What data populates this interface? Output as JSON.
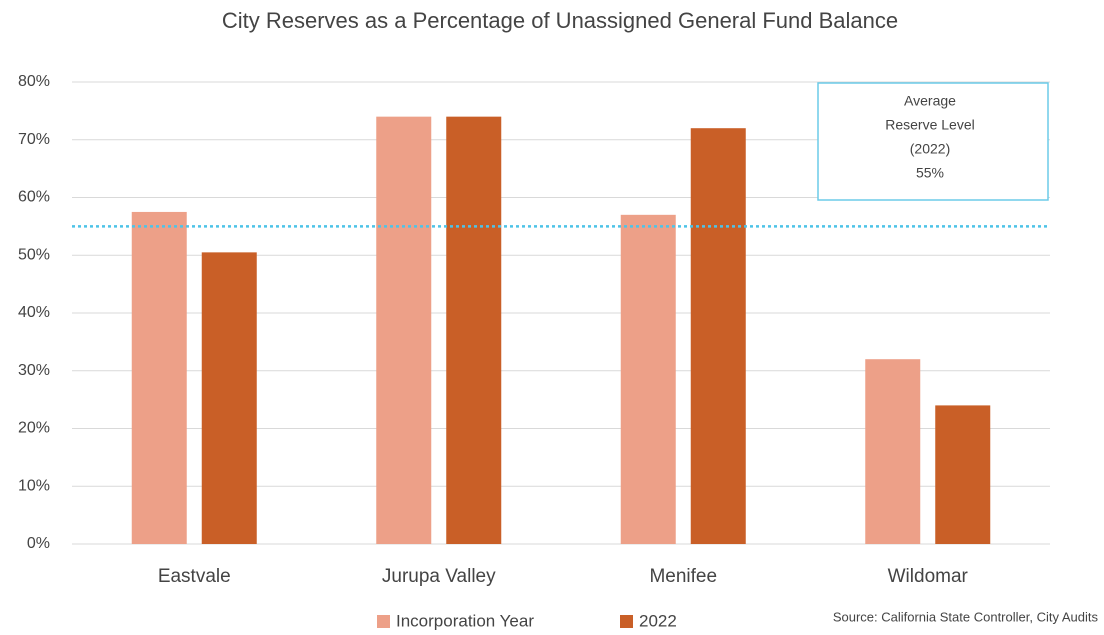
{
  "chart_data": {
    "type": "bar",
    "title": "City Reserves as a Percentage of Unassigned General Fund Balance",
    "categories": [
      "Eastvale",
      "Jurupa Valley",
      "Menifee",
      "Wildomar"
    ],
    "series": [
      {
        "name": "Incorporation Year",
        "color": "#eda088",
        "values": [
          57.5,
          74,
          57,
          32
        ]
      },
      {
        "name": "2022",
        "color": "#c95f27",
        "values": [
          50.5,
          74,
          72,
          24
        ]
      }
    ],
    "ylim": [
      0,
      80
    ],
    "yticks": [
      {
        "value": 0,
        "label": "0%"
      },
      {
        "value": 10,
        "label": "10%"
      },
      {
        "value": 20,
        "label": "20%"
      },
      {
        "value": 30,
        "label": "30%"
      },
      {
        "value": 40,
        "label": "40%"
      },
      {
        "value": 50,
        "label": "50%"
      },
      {
        "value": 60,
        "label": "60%"
      },
      {
        "value": 70,
        "label": "70%"
      },
      {
        "value": 80,
        "label": "80%"
      }
    ],
    "grid": true,
    "reference_line": {
      "value": 55,
      "color": "#4dc3e8",
      "text": [
        "Average",
        "Reserve Level",
        "(2022)"
      ],
      "label": "55%"
    },
    "source": "Source: California State Controller, City Audits"
  }
}
